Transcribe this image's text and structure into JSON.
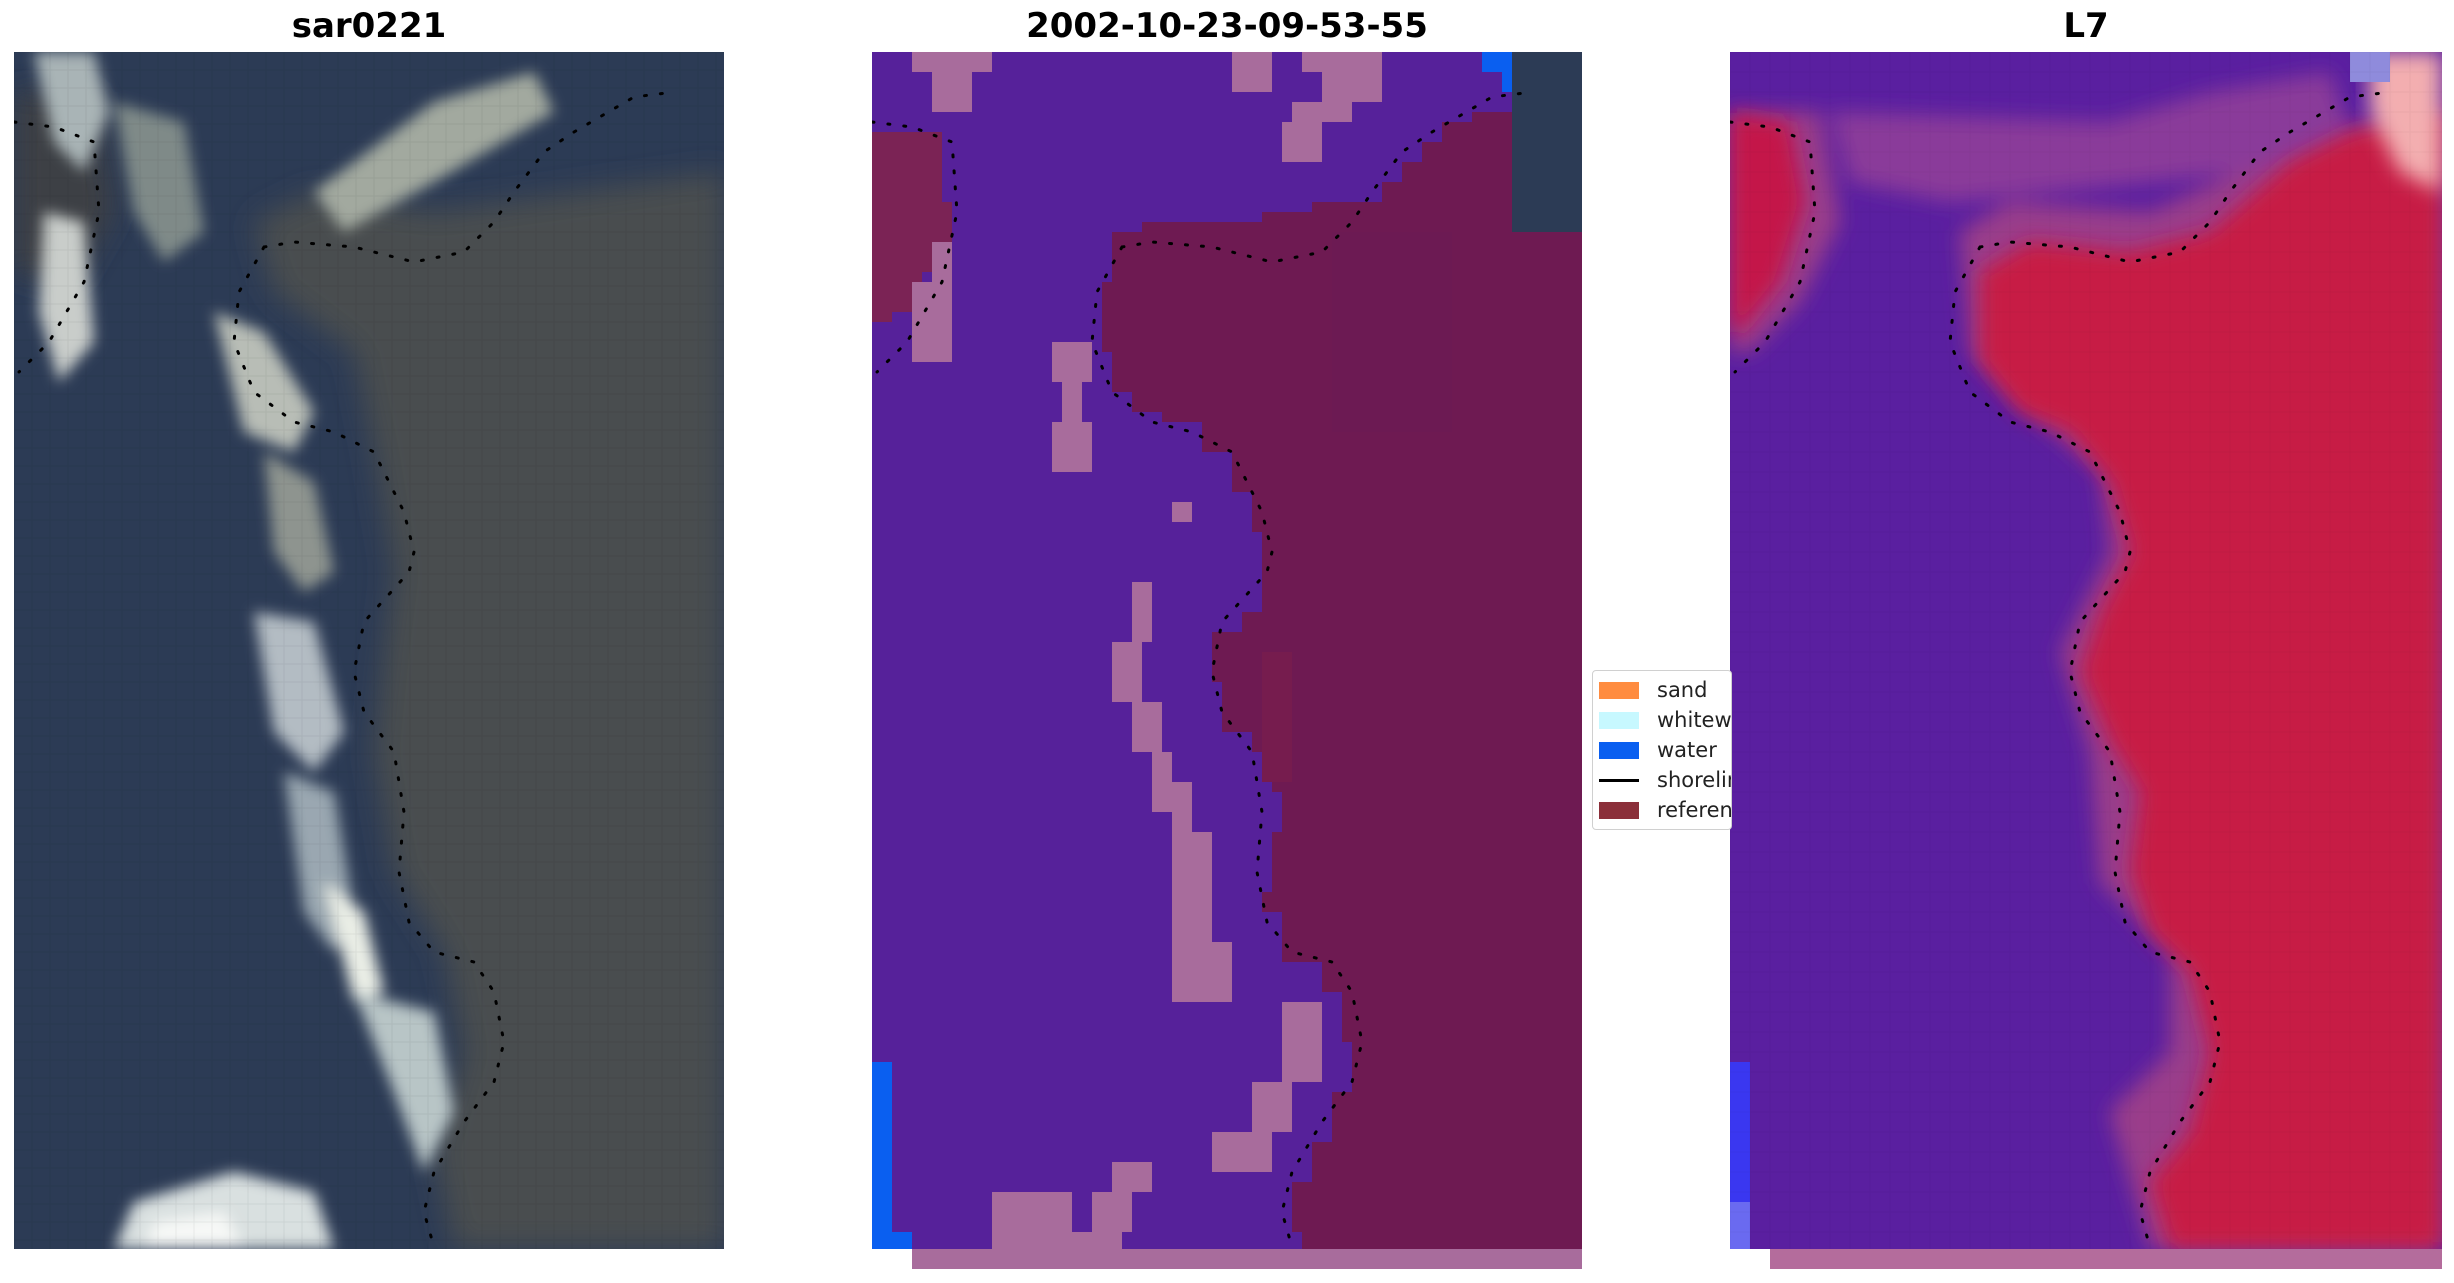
{
  "titles": {
    "panel_1": "sar0221",
    "panel_2": "2002-10-23-09-53-55",
    "panel_3": "L7"
  },
  "legend": {
    "items": [
      {
        "label": "sand",
        "color": "#ff8c40"
      },
      {
        "label": "whitewater",
        "color": "#c7f8ff"
      },
      {
        "label": "water",
        "color": "#0a5ff0"
      },
      {
        "label": "shoreline",
        "color": "#000000"
      },
      {
        "label": "reference",
        "color": "#8b2f3a"
      }
    ]
  },
  "colors": {
    "land_class": "#56219a",
    "reference_overlay": "#6e1a52",
    "sand_overlay": "#a86c9c",
    "ocean_imagery": "#2c3b55",
    "index_low": "#5a1fa0",
    "index_high": "#c71a44"
  }
}
